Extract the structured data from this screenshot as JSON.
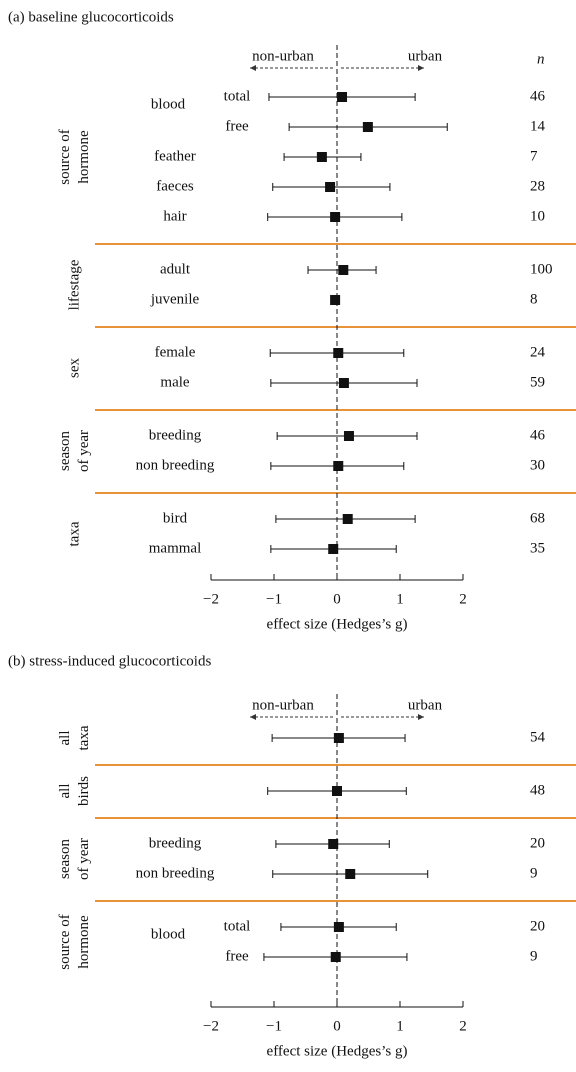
{
  "chart_data": [
    {
      "type": "forest",
      "title": "(a) baseline glucocorticoids",
      "direction_labels": [
        "non-urban",
        "urban"
      ],
      "n_header": "n",
      "xlabel": "effect size (Hedges’s g)",
      "xlim": [
        -2,
        2
      ],
      "xticks": [
        {
          "value": -2,
          "label": "−2"
        },
        {
          "value": -1,
          "label": "−1"
        },
        0,
        1,
        2
      ],
      "groups": [
        {
          "label": [
            "source of",
            "hormone"
          ],
          "rows": [
            {
              "label": "blood",
              "rows": [
                {
                  "label": "total",
                  "value": 0.08,
                  "lower": -1.08,
                  "upper": 1.24,
                  "n": 46
                },
                {
                  "label": "free",
                  "value": 0.49,
                  "lower": -0.76,
                  "upper": 1.75,
                  "n": 14
                }
              ]
            },
            {
              "label": "feather",
              "value": -0.24,
              "lower": -0.84,
              "upper": 0.38,
              "n": 7
            },
            {
              "label": "faeces",
              "value": -0.11,
              "lower": -1.02,
              "upper": 0.84,
              "n": 28
            },
            {
              "label": "hair",
              "value": -0.03,
              "lower": -1.1,
              "upper": 1.03,
              "n": 10
            }
          ]
        },
        {
          "label": [
            "lifestage"
          ],
          "rows": [
            {
              "label": "adult",
              "value": 0.1,
              "lower": -0.46,
              "upper": 0.62,
              "n": 100
            },
            {
              "label": "juvenile",
              "value": -0.03,
              "lower": null,
              "upper": null,
              "n": 8
            }
          ]
        },
        {
          "label": [
            "sex"
          ],
          "rows": [
            {
              "label": "female",
              "value": 0.02,
              "lower": -1.06,
              "upper": 1.06,
              "n": 24
            },
            {
              "label": "male",
              "value": 0.11,
              "lower": -1.05,
              "upper": 1.27,
              "n": 59
            }
          ]
        },
        {
          "label": [
            "season",
            "of year"
          ],
          "rows": [
            {
              "label": "breeding",
              "value": 0.19,
              "lower": -0.95,
              "upper": 1.27,
              "n": 46
            },
            {
              "label": "non breeding",
              "value": 0.02,
              "lower": -1.05,
              "upper": 1.06,
              "n": 30
            }
          ]
        },
        {
          "label": [
            "taxa"
          ],
          "rows": [
            {
              "label": "bird",
              "value": 0.17,
              "lower": -0.97,
              "upper": 1.24,
              "n": 68
            },
            {
              "label": "mammal",
              "value": -0.06,
              "lower": -1.05,
              "upper": 0.94,
              "n": 35
            }
          ]
        }
      ]
    },
    {
      "type": "forest",
      "title": "(b) stress-induced glucocorticoids",
      "direction_labels": [
        "non-urban",
        "urban"
      ],
      "xlabel": "effect size (Hedges’s g)",
      "xlim": [
        -2,
        2
      ],
      "xticks": [
        {
          "value": -2,
          "label": "−2"
        },
        {
          "value": -1,
          "label": "−1"
        },
        0,
        1,
        2
      ],
      "groups": [
        {
          "label": [
            "all",
            "taxa"
          ],
          "rows": [
            {
              "value": 0.03,
              "lower": -1.03,
              "upper": 1.08,
              "n": 54
            }
          ]
        },
        {
          "label": [
            "all",
            "birds"
          ],
          "rows": [
            {
              "value": 0,
              "lower": -1.1,
              "upper": 1.1,
              "n": 48
            }
          ]
        },
        {
          "label": [
            "season",
            "of year"
          ],
          "rows": [
            {
              "label": "breeding",
              "value": -0.06,
              "lower": -0.97,
              "upper": 0.83,
              "n": 20
            },
            {
              "label": "non breeding",
              "value": 0.21,
              "lower": -1.02,
              "upper": 1.44,
              "n": 9
            }
          ]
        },
        {
          "label": [
            "source of",
            "hormone"
          ],
          "rows": [
            {
              "label": "blood",
              "rows": [
                {
                  "label": "total",
                  "value": 0.03,
                  "lower": -0.89,
                  "upper": 0.94,
                  "n": 20
                },
                {
                  "label": "free",
                  "value": -0.02,
                  "lower": -1.16,
                  "upper": 1.11,
                  "n": 9
                }
              ]
            }
          ]
        }
      ]
    }
  ]
}
